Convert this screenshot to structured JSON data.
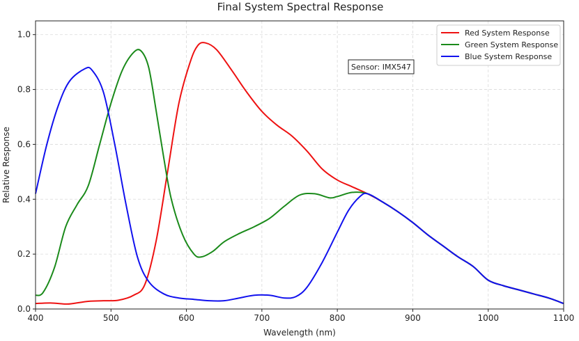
{
  "chart_data": {
    "type": "line",
    "title": "Final System Spectral Response",
    "xlabel": "Wavelength (nm)",
    "ylabel": "Relative Response",
    "xlim": [
      400,
      1100
    ],
    "ylim": [
      0,
      1.05
    ],
    "xticks": [
      400,
      500,
      600,
      700,
      800,
      900,
      1000,
      1100
    ],
    "yticks": [
      0.0,
      0.2,
      0.4,
      0.6,
      0.8,
      1.0
    ],
    "xtick_labels": [
      "400",
      "500",
      "600",
      "700",
      "800",
      "900",
      "1000",
      "1100"
    ],
    "ytick_labels": [
      "0.0",
      "0.2",
      "0.4",
      "0.6",
      "0.8",
      "1.0"
    ],
    "grid": true,
    "legend_position": "top-right",
    "annotation": "Sensor: IMX547",
    "series": [
      {
        "name": "Red System Response",
        "color": "#ee1111",
        "points": [
          [
            400,
            0.02
          ],
          [
            420,
            0.022
          ],
          [
            440,
            0.018
          ],
          [
            450,
            0.02
          ],
          [
            470,
            0.028
          ],
          [
            490,
            0.03
          ],
          [
            510,
            0.032
          ],
          [
            530,
            0.05
          ],
          [
            545,
            0.09
          ],
          [
            560,
            0.25
          ],
          [
            575,
            0.5
          ],
          [
            590,
            0.75
          ],
          [
            605,
            0.9
          ],
          [
            615,
            0.96
          ],
          [
            625,
            0.97
          ],
          [
            640,
            0.945
          ],
          [
            660,
            0.87
          ],
          [
            680,
            0.79
          ],
          [
            700,
            0.72
          ],
          [
            720,
            0.67
          ],
          [
            740,
            0.63
          ],
          [
            760,
            0.575
          ],
          [
            780,
            0.51
          ],
          [
            800,
            0.47
          ],
          [
            820,
            0.445
          ],
          [
            840,
            0.42
          ],
          [
            860,
            0.39
          ],
          [
            880,
            0.355
          ],
          [
            900,
            0.315
          ],
          [
            920,
            0.27
          ],
          [
            940,
            0.23
          ],
          [
            960,
            0.19
          ],
          [
            980,
            0.155
          ],
          [
            1000,
            0.105
          ],
          [
            1020,
            0.085
          ],
          [
            1040,
            0.07
          ],
          [
            1060,
            0.055
          ],
          [
            1080,
            0.04
          ],
          [
            1100,
            0.02
          ]
        ]
      },
      {
        "name": "Green System Response",
        "color": "#1a8a1a",
        "points": [
          [
            400,
            0.05
          ],
          [
            410,
            0.06
          ],
          [
            425,
            0.15
          ],
          [
            440,
            0.3
          ],
          [
            455,
            0.38
          ],
          [
            470,
            0.45
          ],
          [
            485,
            0.6
          ],
          [
            500,
            0.75
          ],
          [
            515,
            0.87
          ],
          [
            530,
            0.935
          ],
          [
            540,
            0.94
          ],
          [
            550,
            0.88
          ],
          [
            560,
            0.72
          ],
          [
            570,
            0.55
          ],
          [
            580,
            0.4
          ],
          [
            595,
            0.27
          ],
          [
            610,
            0.2
          ],
          [
            620,
            0.19
          ],
          [
            635,
            0.21
          ],
          [
            650,
            0.245
          ],
          [
            670,
            0.275
          ],
          [
            690,
            0.3
          ],
          [
            710,
            0.33
          ],
          [
            730,
            0.375
          ],
          [
            750,
            0.415
          ],
          [
            770,
            0.42
          ],
          [
            790,
            0.405
          ],
          [
            800,
            0.41
          ],
          [
            820,
            0.425
          ],
          [
            840,
            0.42
          ],
          [
            860,
            0.39
          ],
          [
            880,
            0.355
          ],
          [
            900,
            0.315
          ],
          [
            920,
            0.27
          ],
          [
            940,
            0.23
          ],
          [
            960,
            0.19
          ],
          [
            980,
            0.155
          ],
          [
            1000,
            0.105
          ],
          [
            1020,
            0.085
          ],
          [
            1040,
            0.07
          ],
          [
            1060,
            0.055
          ],
          [
            1080,
            0.04
          ],
          [
            1100,
            0.02
          ]
        ]
      },
      {
        "name": "Blue System Response",
        "color": "#1111ee",
        "points": [
          [
            400,
            0.42
          ],
          [
            415,
            0.6
          ],
          [
            430,
            0.74
          ],
          [
            445,
            0.83
          ],
          [
            465,
            0.875
          ],
          [
            475,
            0.87
          ],
          [
            490,
            0.79
          ],
          [
            505,
            0.6
          ],
          [
            520,
            0.38
          ],
          [
            535,
            0.19
          ],
          [
            550,
            0.1
          ],
          [
            570,
            0.055
          ],
          [
            590,
            0.04
          ],
          [
            610,
            0.035
          ],
          [
            630,
            0.03
          ],
          [
            650,
            0.03
          ],
          [
            670,
            0.04
          ],
          [
            690,
            0.05
          ],
          [
            710,
            0.05
          ],
          [
            730,
            0.04
          ],
          [
            745,
            0.045
          ],
          [
            760,
            0.08
          ],
          [
            780,
            0.17
          ],
          [
            800,
            0.28
          ],
          [
            815,
            0.36
          ],
          [
            830,
            0.41
          ],
          [
            840,
            0.42
          ],
          [
            860,
            0.39
          ],
          [
            880,
            0.355
          ],
          [
            900,
            0.315
          ],
          [
            920,
            0.27
          ],
          [
            940,
            0.23
          ],
          [
            960,
            0.19
          ],
          [
            980,
            0.155
          ],
          [
            1000,
            0.105
          ],
          [
            1020,
            0.085
          ],
          [
            1040,
            0.07
          ],
          [
            1060,
            0.055
          ],
          [
            1080,
            0.04
          ],
          [
            1100,
            0.02
          ]
        ]
      }
    ]
  }
}
